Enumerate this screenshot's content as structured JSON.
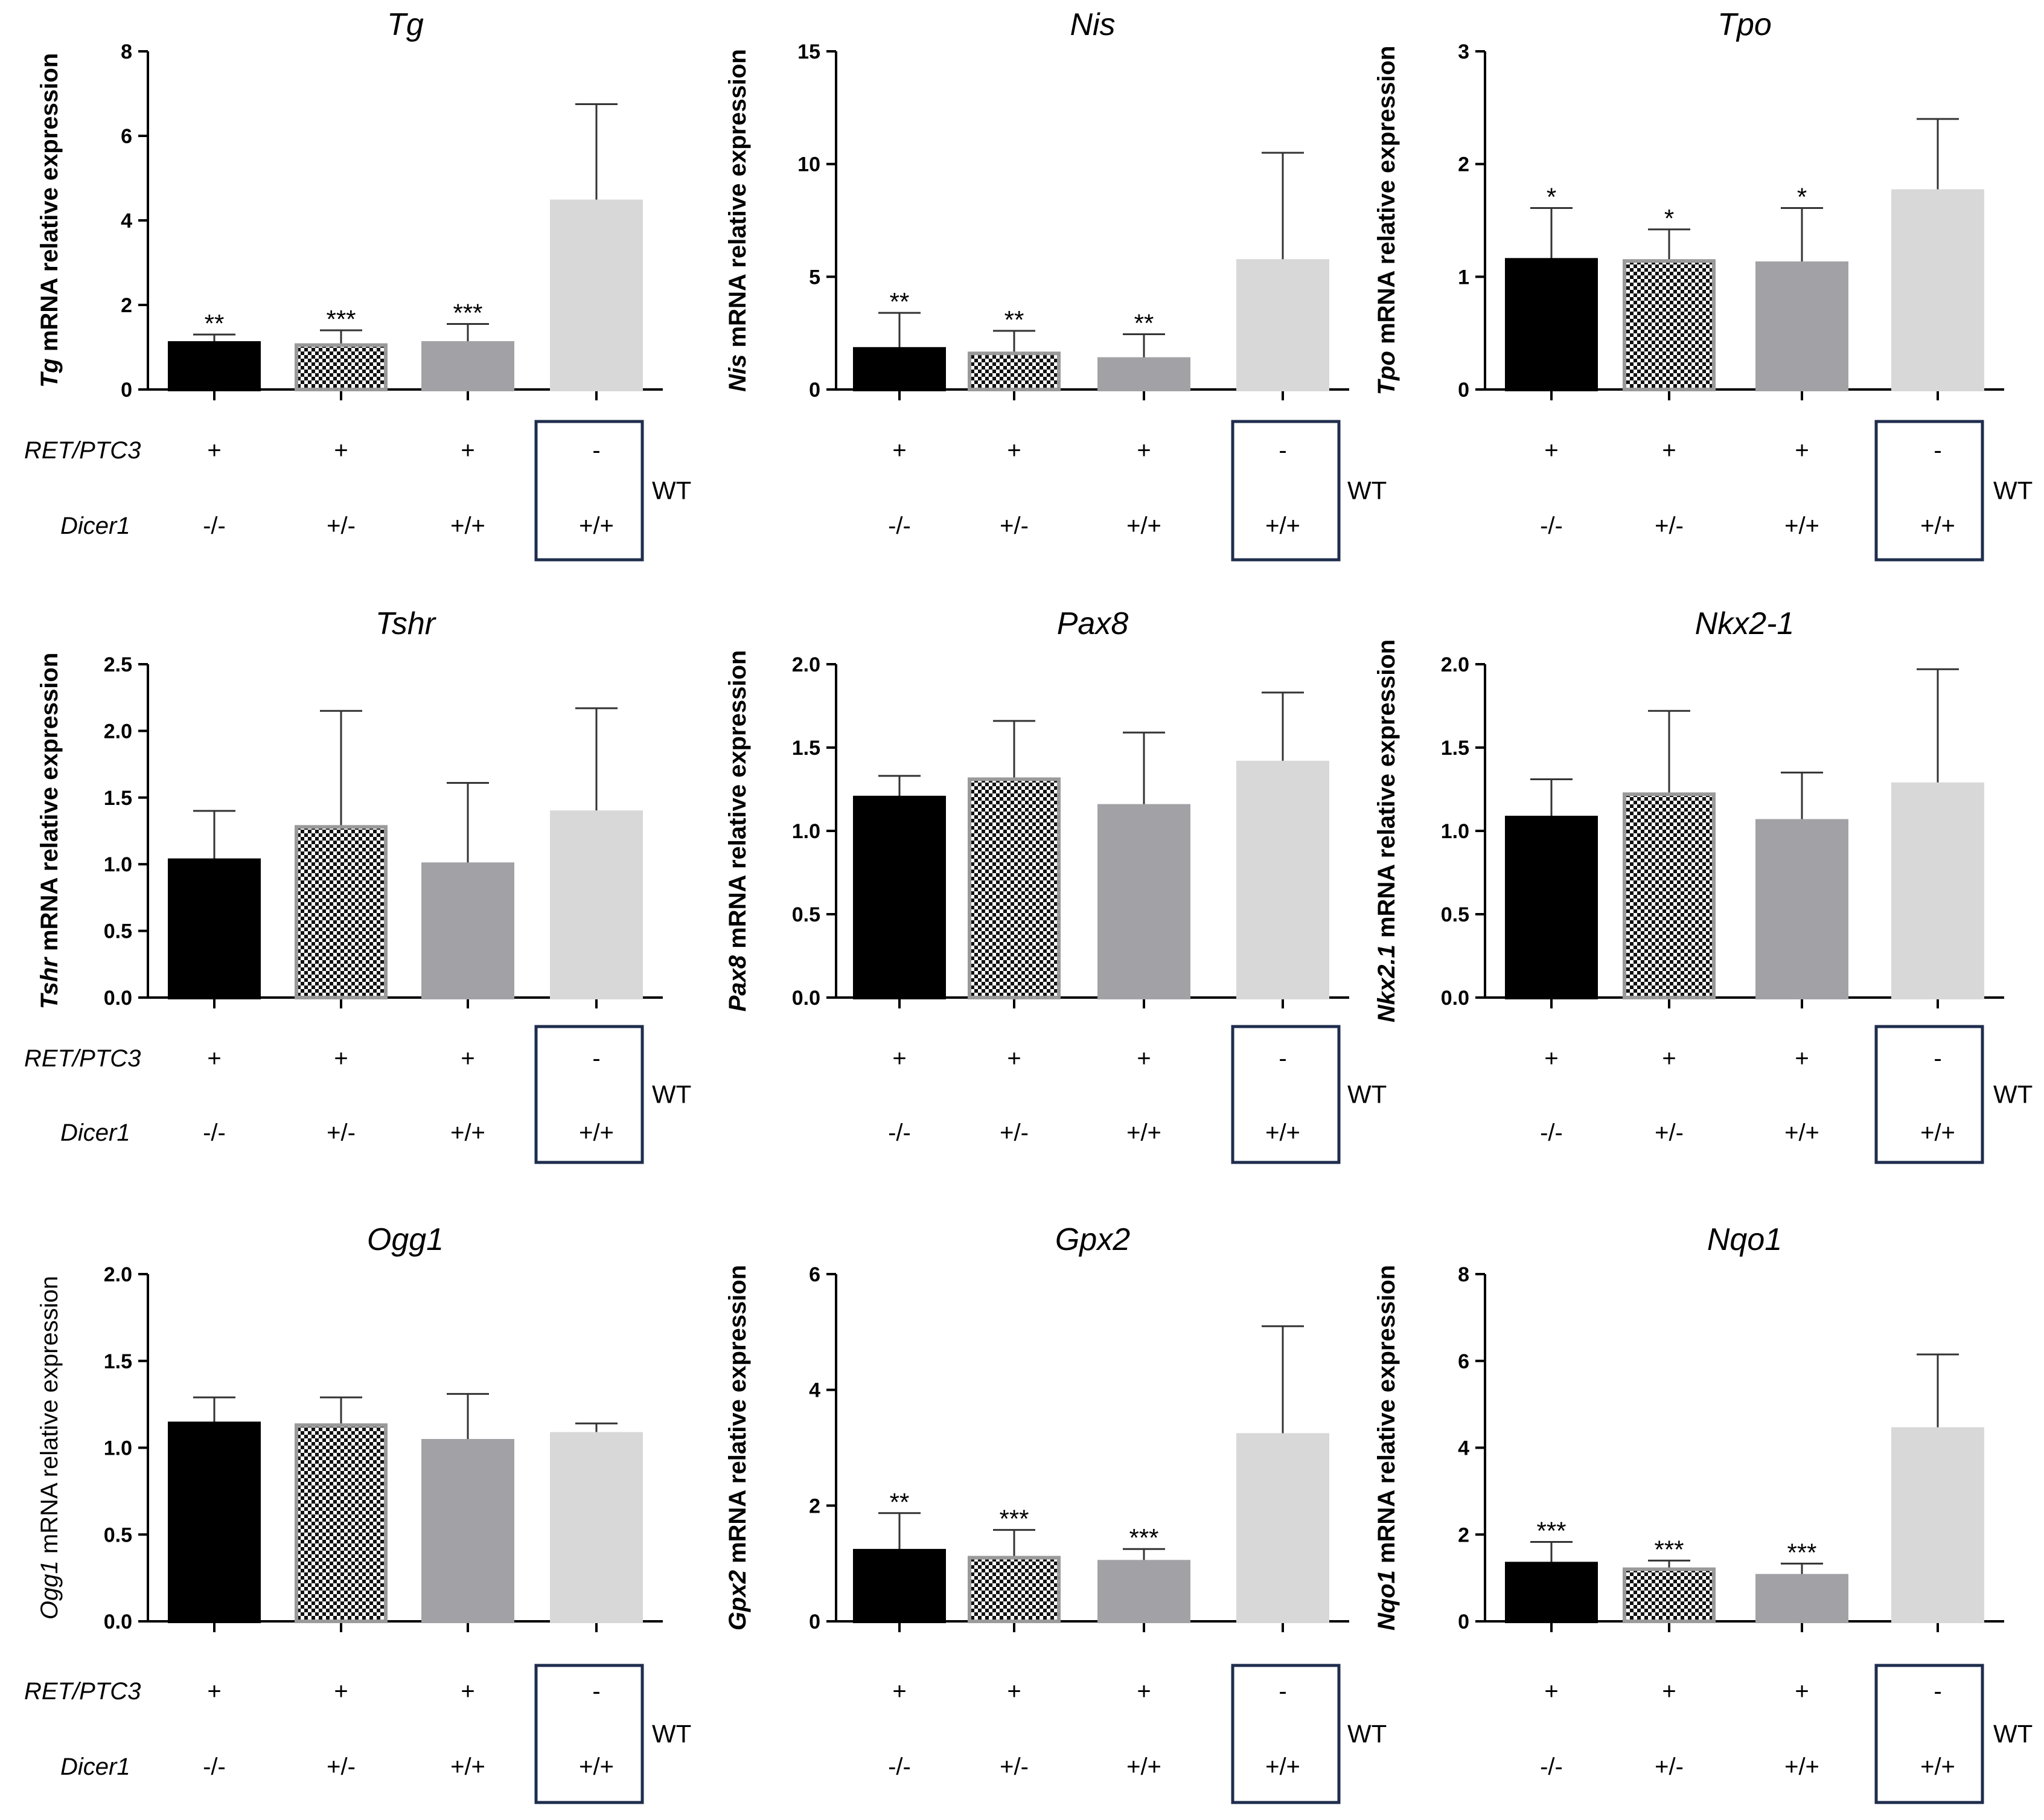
{
  "figure": {
    "row_labels": [
      "RET/PTC3",
      "Dicer1"
    ],
    "group_note": "WT",
    "retptc3": [
      "+",
      "+",
      "+",
      "-"
    ],
    "dicer1": [
      "-/-",
      "+/-",
      "+/+",
      "+/+"
    ],
    "show_row_labels_in_column": [
      0
    ]
  },
  "chart_data": [
    {
      "type": "bar",
      "title": "Tg",
      "ylabel_gene": "Tg",
      "ylabel_rest": " mRNA relative expression",
      "ylim": [
        0,
        8
      ],
      "yticks": [
        "0",
        "2",
        "4",
        "6",
        "8"
      ],
      "categories": [
        "-/-",
        "+/-",
        "+/+",
        "+/+"
      ],
      "values": [
        1.1,
        1.05,
        1.1,
        4.45
      ],
      "errors": [
        0.2,
        0.35,
        0.45,
        2.3
      ],
      "significance": [
        "**",
        "***",
        "***",
        ""
      ]
    },
    {
      "type": "bar",
      "title": "Nis",
      "ylabel_gene": "Nis",
      "ylabel_rest": " mRNA relative expression",
      "ylim": [
        0,
        15
      ],
      "yticks": [
        "0",
        "5",
        "10",
        "15"
      ],
      "categories": [
        "-/-",
        "+/-",
        "+/+",
        "+/+"
      ],
      "values": [
        1.8,
        1.6,
        1.35,
        5.7
      ],
      "errors": [
        1.6,
        1.0,
        1.1,
        4.8
      ],
      "significance": [
        "**",
        "**",
        "**",
        ""
      ]
    },
    {
      "type": "bar",
      "title": "Tpo",
      "ylabel_gene": "Tpo",
      "ylabel_rest": " mRNA relative expression",
      "ylim": [
        0,
        3
      ],
      "yticks": [
        "0",
        "1",
        "2",
        "3"
      ],
      "categories": [
        "-/-",
        "+/-",
        "+/+",
        "+/+"
      ],
      "values": [
        1.15,
        1.14,
        1.12,
        1.76
      ],
      "errors": [
        0.46,
        0.28,
        0.49,
        0.64
      ],
      "significance": [
        "*",
        "*",
        "*",
        ""
      ]
    },
    {
      "type": "bar",
      "title": "Tshr",
      "ylabel_gene": "Tshr",
      "ylabel_rest": " mRNA relative expression",
      "ylim": [
        0,
        2.5
      ],
      "yticks": [
        "0.0",
        "0.5",
        "1.0",
        "1.5",
        "2.0",
        "2.5"
      ],
      "categories": [
        "-/-",
        "+/-",
        "+/+",
        "+/+"
      ],
      "values": [
        1.03,
        1.28,
        1.0,
        1.39
      ],
      "errors": [
        0.37,
        0.87,
        0.61,
        0.78
      ],
      "significance": [
        "",
        "",
        "",
        ""
      ]
    },
    {
      "type": "bar",
      "title": "Pax8",
      "ylabel_gene": "Pax8",
      "ylabel_rest": " mRNA relative expression",
      "ylim": [
        0,
        2.0
      ],
      "yticks": [
        "0.0",
        "0.5",
        "1.0",
        "1.5",
        "2.0"
      ],
      "categories": [
        "-/-",
        "+/-",
        "+/+",
        "+/+"
      ],
      "values": [
        1.2,
        1.31,
        1.15,
        1.41
      ],
      "errors": [
        0.13,
        0.35,
        0.44,
        0.42
      ],
      "significance": [
        "",
        "",
        "",
        ""
      ]
    },
    {
      "type": "bar",
      "title": "Nkx2-1",
      "ylabel_gene": "Nkx2.1",
      "ylabel_rest": " mRNA relative expression",
      "ylim": [
        0,
        2.0
      ],
      "yticks": [
        "0.0",
        "0.5",
        "1.0",
        "1.5",
        "2.0"
      ],
      "categories": [
        "-/-",
        "+/-",
        "+/+",
        "+/+"
      ],
      "values": [
        1.08,
        1.22,
        1.06,
        1.28
      ],
      "errors": [
        0.23,
        0.5,
        0.29,
        0.69
      ],
      "significance": [
        "",
        "",
        "",
        ""
      ]
    },
    {
      "type": "bar",
      "title": "Ogg1",
      "ylabel_gene": "Ogg1",
      "ylabel_rest": " mRNA relative expression",
      "ylabel_style": "plain",
      "ylim": [
        0,
        2.0
      ],
      "yticks": [
        "0.0",
        "0.5",
        "1.0",
        "1.5",
        "2.0"
      ],
      "categories": [
        "-/-",
        "+/-",
        "+/+",
        "+/+"
      ],
      "values": [
        1.14,
        1.13,
        1.04,
        1.08
      ],
      "errors": [
        0.15,
        0.16,
        0.27,
        0.06
      ],
      "significance": [
        "",
        "",
        "",
        ""
      ]
    },
    {
      "type": "bar",
      "title": "Gpx2",
      "ylabel_gene": "Gpx2",
      "ylabel_rest": " mRNA relative expression",
      "ylim": [
        0,
        6
      ],
      "yticks": [
        "0",
        "2",
        "4",
        "6"
      ],
      "categories": [
        "-/-",
        "+/-",
        "+/+",
        "+/+"
      ],
      "values": [
        1.22,
        1.1,
        1.03,
        3.22
      ],
      "errors": [
        0.65,
        0.48,
        0.22,
        1.88
      ],
      "significance": [
        "**",
        "***",
        "***",
        ""
      ]
    },
    {
      "type": "bar",
      "title": "Nqo1",
      "ylabel_gene": "Nqo1",
      "ylabel_rest": " mRNA relative expression",
      "ylim": [
        0,
        8
      ],
      "yticks": [
        "0",
        "2",
        "4",
        "6",
        "8"
      ],
      "categories": [
        "-/-",
        "+/-",
        "+/+",
        "+/+"
      ],
      "values": [
        1.33,
        1.2,
        1.05,
        4.43
      ],
      "errors": [
        0.5,
        0.2,
        0.28,
        1.72
      ],
      "significance": [
        "***",
        "***",
        "***",
        ""
      ]
    }
  ]
}
